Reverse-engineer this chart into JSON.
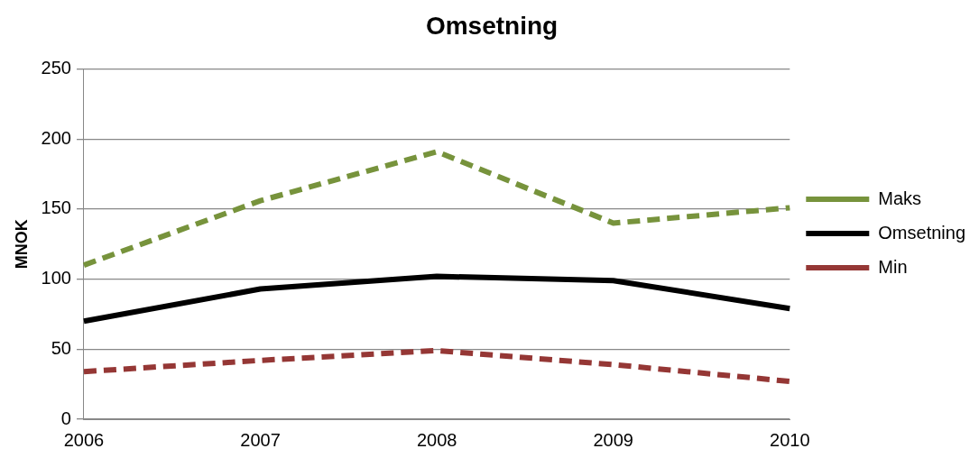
{
  "chart_data": {
    "type": "line",
    "title": "Omsetning",
    "ylabel": "MNOK",
    "categories": [
      "2006",
      "2007",
      "2008",
      "2009",
      "2010"
    ],
    "series": [
      {
        "name": "Maks",
        "color": "#77933c",
        "line_style": "dashed",
        "values": [
          110,
          156,
          191,
          140,
          151
        ]
      },
      {
        "name": "Omsetning",
        "color": "#000000",
        "line_style": "solid",
        "values": [
          70,
          93,
          102,
          99,
          79
        ]
      },
      {
        "name": "Min",
        "color": "#953735",
        "line_style": "dashed",
        "values": [
          34,
          42,
          49,
          39,
          27
        ]
      }
    ],
    "ylim": [
      0,
      250
    ],
    "yticks": [
      0,
      50,
      100,
      150,
      200,
      250
    ],
    "grid": "y",
    "legend": "right",
    "marker": "none"
  }
}
